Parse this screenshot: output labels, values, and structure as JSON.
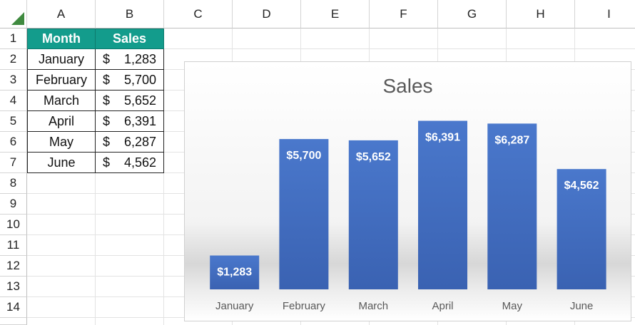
{
  "spreadsheet": {
    "columns": [
      "A",
      "B",
      "C",
      "D",
      "E",
      "F",
      "G",
      "H",
      "I"
    ],
    "rows": [
      "1",
      "2",
      "3",
      "4",
      "5",
      "6",
      "7",
      "8",
      "9",
      "10",
      "11",
      "12",
      "13",
      "14"
    ],
    "table": {
      "header_month": "Month",
      "header_sales": "Sales",
      "rows": [
        {
          "month": "January",
          "currency": "$",
          "sales": "1,283"
        },
        {
          "month": "February",
          "currency": "$",
          "sales": "5,700"
        },
        {
          "month": "March",
          "currency": "$",
          "sales": "5,652"
        },
        {
          "month": "April",
          "currency": "$",
          "sales": "6,391"
        },
        {
          "month": "May",
          "currency": "$",
          "sales": "6,287"
        },
        {
          "month": "June",
          "currency": "$",
          "sales": "4,562"
        }
      ]
    },
    "header_fill_color": "#139c8c"
  },
  "chart_data": {
    "type": "bar",
    "title": "Sales",
    "categories": [
      "January",
      "February",
      "March",
      "April",
      "May",
      "June"
    ],
    "values": [
      1283,
      5700,
      5652,
      6391,
      6287,
      4562
    ],
    "data_labels": [
      "$1,283",
      "$5,700",
      "$5,652",
      "$6,391",
      "$6,287",
      "$4,562"
    ],
    "bar_color": "#4472c4",
    "ylim": [
      0,
      7000
    ],
    "grid": false,
    "legend": "none"
  }
}
